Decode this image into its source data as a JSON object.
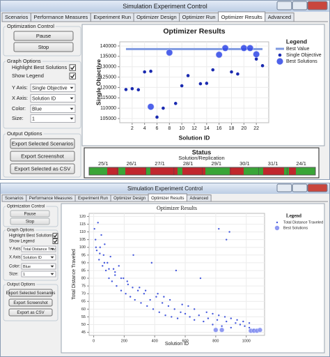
{
  "windows": [
    {
      "title": "Simulation Experiment Control",
      "tabs": [
        "Scenarios",
        "Performance Measures",
        "Experiment Run",
        "Optimizer Design",
        "Optimizer Run",
        "Optimizer Results",
        "Advanced"
      ],
      "active_tab": 5,
      "optimization_control": {
        "title": "Optimization Control",
        "buttons": [
          "Pause",
          "Stop"
        ],
        "enabled": true
      },
      "graph_options": {
        "title": "Graph Options",
        "checkboxes": [
          {
            "label": "Highlight Best Solutions",
            "checked": true
          },
          {
            "label": "Show Legend",
            "checked": true
          }
        ],
        "fields": [
          {
            "label": "Y Axis:",
            "value": "Single Objective"
          },
          {
            "label": "X Axis:",
            "value": "Solution ID"
          },
          {
            "label": "Color:",
            "value": "Blue"
          },
          {
            "label": "Size:",
            "value": 1
          }
        ]
      },
      "output_options": {
        "title": "Output Options",
        "buttons": [
          "Export Selected Scenarios",
          "Export Screenshot",
          "Export Selected as CSV"
        ]
      },
      "chart": {
        "type": "scatter",
        "title": "Optimizer Results",
        "x_label": "Solution ID",
        "y_label": "Single Objective",
        "xlim": [
          0,
          24
        ],
        "ylim": [
          103000,
          142000
        ],
        "xticks": [
          2,
          4,
          6,
          8,
          10,
          12,
          14,
          16,
          18,
          20,
          22
        ],
        "yticks": [
          105000,
          110000,
          115000,
          120000,
          125000,
          130000,
          135000,
          140000
        ],
        "grid": true,
        "legend": {
          "title": "Legend"
        },
        "reference_line": {
          "name": "Best Value",
          "value": 138500,
          "x": [
            1,
            23
          ],
          "color": "#7f9ae0"
        },
        "series": [
          {
            "name": "Single Objective",
            "color": "#1a2ab0",
            "x": [
              1,
              2,
              3,
              4,
              5,
              6,
              7,
              9,
              10,
              11,
              13,
              14,
              15,
              18,
              19,
              22,
              23
            ],
            "values": [
              119000,
              119400,
              118900,
              127500,
              127800,
              105700,
              110000,
              112300,
              120800,
              125700,
              121800,
              122000,
              128500,
              127500,
              126500,
              133700,
              130500
            ]
          },
          {
            "name": "Best Solutions",
            "color": "#2f46e6",
            "x": [
              5,
              8,
              16,
              17,
              20,
              21,
              22
            ],
            "values": [
              110700,
              136800,
              135800,
              139000,
              139000,
              139000,
              136000
            ]
          }
        ]
      },
      "status": {
        "title": "Status",
        "subtitle": "Solution/Replication",
        "labels": [
          "25/1",
          "26/1",
          "27/1",
          "28/1",
          "29/1",
          "30/1",
          "31/1",
          "24/1"
        ]
      }
    },
    {
      "title": "Simulation Experiment Control",
      "tabs": [
        "Scenarios",
        "Performance Measures",
        "Experiment Run",
        "Optimizer Design",
        "Optimizer Results",
        "Advanced"
      ],
      "active_tab": 4,
      "optimization_control": {
        "title": "Optimization Control",
        "buttons": [
          "Pause",
          "Stop"
        ],
        "enabled": false
      },
      "graph_options": {
        "title": "Graph Options",
        "checkboxes": [
          {
            "label": "Highlight Best Solutions",
            "checked": true
          },
          {
            "label": "Show Legend",
            "checked": true
          }
        ],
        "fields": [
          {
            "label": "Y Axis:",
            "value": "Total Distance Trav"
          },
          {
            "label": "X Axis:",
            "value": "Solution ID"
          },
          {
            "label": "Color:",
            "value": "Blue"
          },
          {
            "label": "Size:",
            "value": 1
          }
        ]
      },
      "output_options": {
        "title": "Output Options",
        "buttons": [
          "Export Selected Scenarios",
          "Export Screenshot",
          "Export as CSV"
        ]
      },
      "chart": {
        "type": "scatter",
        "title": "Optimizer Results",
        "x_label": "Solution ID",
        "y_label": "Total Distance Traveled",
        "xlim": [
          -30,
          1120
        ],
        "ylim": [
          43,
          122
        ],
        "xticks": [
          0,
          200,
          400,
          600,
          800,
          1000
        ],
        "yticks": [
          45,
          50,
          55,
          60,
          65,
          70,
          75,
          80,
          85,
          90,
          95,
          100,
          105,
          110,
          115,
          120
        ],
        "grid": true,
        "legend": {
          "title": "Legend"
        },
        "series": [
          {
            "name": "Total Distance Traveled",
            "color": "#4458dc",
            "x": [
              5,
              12,
              20,
              28,
              35,
              42,
              50,
              58,
              65,
              72,
              80,
              90,
              100,
              110,
              120,
              130,
              140,
              150,
              165,
              180,
              195,
              210,
              225,
              240,
              255,
              270,
              290,
              310,
              330,
              350,
              370,
              390,
              410,
              430,
              450,
              470,
              490,
              510,
              530,
              550,
              570,
              600,
              630,
              660,
              690,
              720,
              750,
              780,
              810,
              840,
              870,
              900,
              930,
              960,
              990,
              1020,
              1050,
              15,
              40,
              70,
              100,
              140,
              180,
              220,
              260,
              300,
              340,
              380,
              420,
              460,
              500,
              540,
              580,
              620,
              660,
              700,
              740,
              780,
              820,
              860,
              900,
              940,
              980,
              1020,
              820,
              870,
              890
            ],
            "values": [
              112,
              105,
              98,
              116,
              92,
              100,
              108,
              88,
              95,
              102,
              85,
              90,
              80,
              94,
              78,
              86,
              82,
              75,
              88,
              72,
              80,
              70,
              76,
              68,
              74,
              66,
              72,
              64,
              70,
              62,
              66,
              60,
              68,
              58,
              64,
              56,
              62,
              55,
              60,
              54,
              58,
              57,
              55,
              53,
              56,
              52,
              54,
              50,
              53,
              49,
              52,
              48,
              51,
              50,
              49,
              48,
              47,
              100,
              96,
              90,
              86,
              84,
              80,
              78,
              95,
              74,
              72,
              90,
              70,
              68,
              66,
              85,
              63,
              62,
              60,
              80,
              58,
              57,
              56,
              55,
              54,
              53,
              52,
              51,
              112,
              105,
              110
            ]
          },
          {
            "name": "Best Solutions",
            "color": "#7b87ef",
            "x": [
              800,
              840,
              1030,
              1050,
              1070,
              1090
            ],
            "values": [
              46.5,
              46.5,
              46,
              46,
              46,
              46.5
            ]
          }
        ]
      }
    }
  ]
}
